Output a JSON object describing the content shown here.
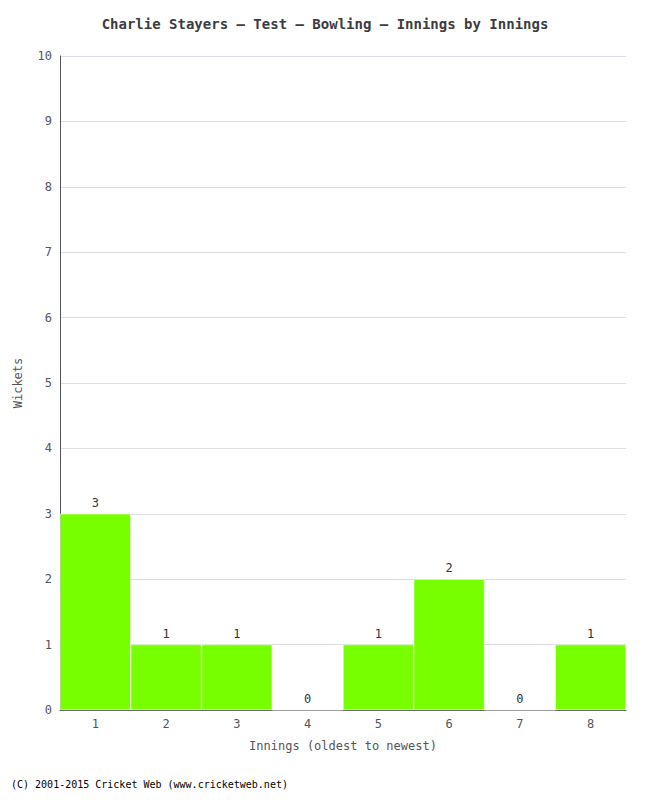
{
  "chart_data": {
    "type": "bar",
    "title": "Charlie Stayers – Test – Bowling – Innings by Innings",
    "xlabel": "Innings (oldest to newest)",
    "ylabel": "Wickets",
    "footer": "(C) 2001-2015 Cricket Web (www.cricketweb.net)",
    "categories": [
      "1",
      "2",
      "3",
      "4",
      "5",
      "6",
      "7",
      "8"
    ],
    "values": [
      3,
      1,
      1,
      0,
      1,
      2,
      0,
      1
    ],
    "color": "#77ff00",
    "ylim": [
      0,
      10
    ],
    "yticks": [
      0,
      1,
      2,
      3,
      4,
      5,
      6,
      7,
      8,
      9,
      10
    ],
    "grid": true,
    "data_labels": true
  }
}
